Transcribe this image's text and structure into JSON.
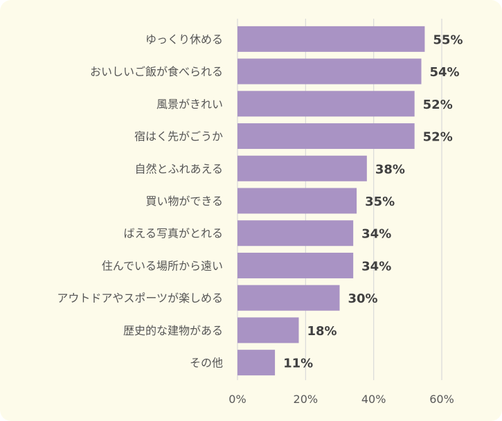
{
  "chart_data": {
    "type": "bar",
    "orientation": "horizontal",
    "categories": [
      "ゆっくり休める",
      "おいしいご飯が食べられる",
      "風景がきれい",
      "宿はく先がごうか",
      "自然とふれあえる",
      "買い物ができる",
      "ばえる写真がとれる",
      "住んでいる場所から遠い",
      "アウトドアやスポーツが楽しめる",
      "歴史的な建物がある",
      "その他"
    ],
    "values": [
      55,
      54,
      52,
      52,
      38,
      35,
      34,
      34,
      30,
      18,
      11
    ],
    "value_labels": [
      "55%",
      "54%",
      "52%",
      "52%",
      "38%",
      "35%",
      "34%",
      "34%",
      "30%",
      "18%",
      "11%"
    ],
    "xlim": [
      0,
      60
    ],
    "x_ticks": [
      0,
      20,
      40,
      60
    ],
    "x_tick_labels": [
      "0%",
      "20%",
      "40%",
      "60%"
    ],
    "grid": true,
    "colors": {
      "bar": "#a993c4",
      "background": "#fdfbea",
      "grid": "#d9d9d9",
      "text": "#555555",
      "value_text": "#404040"
    }
  }
}
